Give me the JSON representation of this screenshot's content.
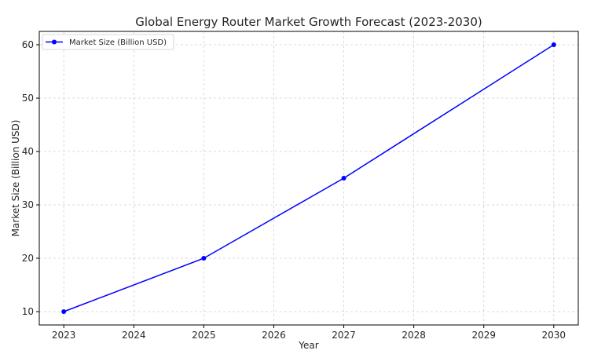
{
  "chart_data": {
    "type": "line",
    "title": "Global Energy Router Market Growth Forecast (2023-2030)",
    "xlabel": "Year",
    "ylabel": "Market Size (Billion USD)",
    "x_ticks": [
      "2023",
      "2024",
      "2025",
      "2026",
      "2027",
      "2028",
      "2029",
      "2030"
    ],
    "y_ticks": [
      "10",
      "20",
      "30",
      "40",
      "50",
      "60"
    ],
    "xlim": [
      2022.65,
      2030.35
    ],
    "ylim": [
      7.5,
      62.5
    ],
    "grid": true,
    "legend_position": "top-left",
    "series": [
      {
        "name": "Market Size (Billion USD)",
        "color": "#0000ff",
        "marker": "circle",
        "x": [
          2023,
          2025,
          2027,
          2030
        ],
        "y": [
          10,
          20,
          35,
          60
        ]
      }
    ]
  }
}
